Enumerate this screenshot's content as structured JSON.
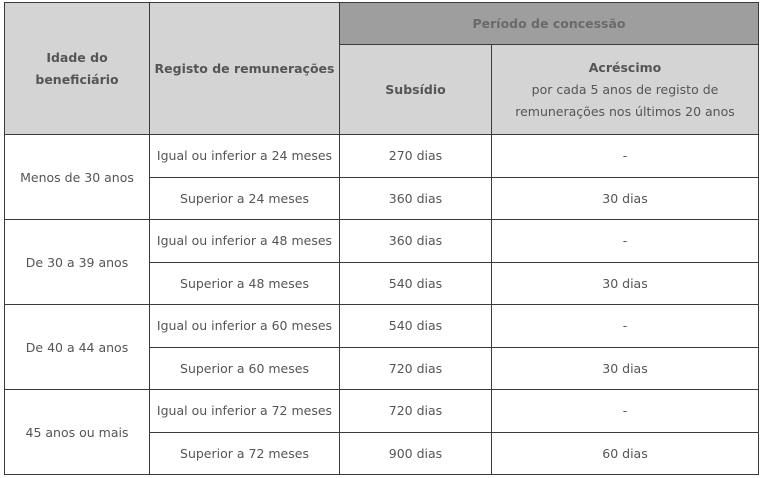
{
  "headers": {
    "age": "Idade do beneficiário",
    "age_line1": "Idade do",
    "age_line2": "beneficiário",
    "record": "Registo de remunerações",
    "period": "Período de concessão",
    "subsidy": "Subsídio",
    "increase_title": "Acréscimo",
    "increase_line1": "por cada 5 anos de registo de",
    "increase_line2": "remunerações nos últimos 20 anos"
  },
  "groups": [
    {
      "age": "Menos de 30 anos",
      "rows": [
        {
          "record": "Igual ou inferior a 24 meses",
          "subsidy": "270 dias",
          "increase": "-"
        },
        {
          "record": "Superior a 24 meses",
          "subsidy": "360 dias",
          "increase": "30 dias"
        }
      ]
    },
    {
      "age": "De 30 a 39 anos",
      "rows": [
        {
          "record": "Igual ou inferior a 48 meses",
          "subsidy": "360 dias",
          "increase": "-"
        },
        {
          "record": "Superior a 48 meses",
          "subsidy": "540 dias",
          "increase": "30 dias"
        }
      ]
    },
    {
      "age": "De 40 a 44 anos",
      "rows": [
        {
          "record": "Igual ou inferior a 60 meses",
          "subsidy": "540 dias",
          "increase": "-"
        },
        {
          "record": "Superior a 60 meses",
          "subsidy": "720 dias",
          "increase": "30 dias"
        }
      ]
    },
    {
      "age": "45 anos ou mais",
      "rows": [
        {
          "record": "Igual ou inferior a 72 meses",
          "subsidy": "720 dias",
          "increase": "-"
        },
        {
          "record": "Superior a 72 meses",
          "subsidy": "900 dias",
          "increase": "60 dias"
        }
      ]
    }
  ]
}
